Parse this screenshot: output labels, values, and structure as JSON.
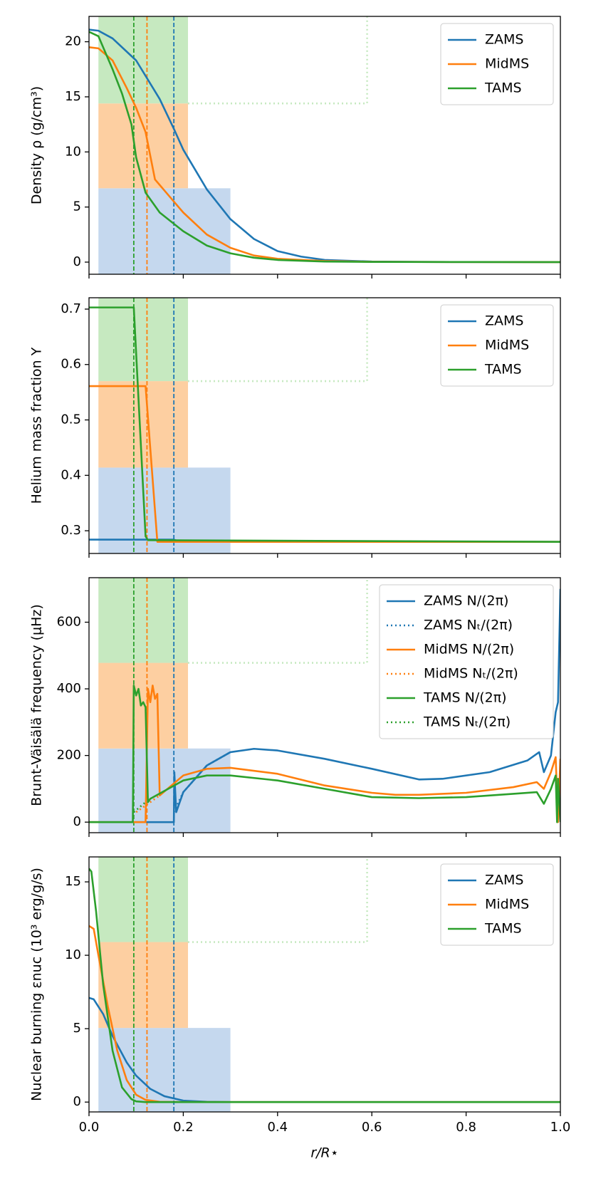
{
  "chart_data": [
    {
      "type": "line",
      "ylabel": "Density ρ (g/cm³)",
      "xlim": [
        0,
        1
      ],
      "ylim": [
        -1.1,
        22.3
      ],
      "yticks": [
        0,
        5,
        10,
        15,
        20
      ],
      "legend": "upper right",
      "regions": [
        {
          "x": [
            0.02,
            0.3
          ],
          "y": [
            -1.1,
            6.7
          ],
          "color": "#c5d8ee"
        },
        {
          "x": [
            0.02,
            0.21
          ],
          "y": [
            6.7,
            14.4
          ],
          "color": "#fdcfa1"
        },
        {
          "x": [
            0.02,
            0.21
          ],
          "y": [
            14.4,
            22.3
          ],
          "color": "#c6e9c0"
        }
      ],
      "step_line": {
        "x": [
          0.21,
          0.59,
          0.59
        ],
        "y": [
          14.4,
          14.4,
          22.3
        ],
        "color": "#c6e9c0"
      },
      "vlines": [
        {
          "x": 0.095,
          "color": "#2ca02c"
        },
        {
          "x": 0.123,
          "color": "#ff7f0e"
        },
        {
          "x": 0.18,
          "color": "#1f77b4"
        }
      ],
      "series": [
        {
          "name": "ZAMS",
          "color": "#1f77b4",
          "linestyle": "solid",
          "x": [
            0,
            0.02,
            0.05,
            0.1,
            0.15,
            0.18,
            0.2,
            0.25,
            0.3,
            0.35,
            0.4,
            0.45,
            0.5,
            0.6,
            0.7,
            0.8,
            1.0
          ],
          "values": [
            21.1,
            21.0,
            20.3,
            18.3,
            14.8,
            12.1,
            10.2,
            6.6,
            3.9,
            2.1,
            1.0,
            0.5,
            0.2,
            0.05,
            0.02,
            0.01,
            0
          ]
        },
        {
          "name": "MidMS",
          "color": "#ff7f0e",
          "linestyle": "solid",
          "x": [
            0,
            0.02,
            0.05,
            0.08,
            0.1,
            0.12,
            0.14,
            0.16,
            0.2,
            0.25,
            0.3,
            0.35,
            0.4,
            0.5,
            0.6,
            0.8,
            1.0
          ],
          "values": [
            19.5,
            19.4,
            18.3,
            15.8,
            14.0,
            11.8,
            7.5,
            6.5,
            4.5,
            2.5,
            1.3,
            0.6,
            0.3,
            0.1,
            0.03,
            0.01,
            0
          ]
        },
        {
          "name": "TAMS",
          "color": "#2ca02c",
          "linestyle": "solid",
          "x": [
            0,
            0.02,
            0.05,
            0.07,
            0.09,
            0.1,
            0.12,
            0.15,
            0.2,
            0.25,
            0.3,
            0.35,
            0.4,
            0.5,
            0.6,
            0.8,
            1.0
          ],
          "values": [
            20.9,
            20.5,
            17.5,
            15.3,
            12.5,
            9.5,
            6.3,
            4.5,
            2.8,
            1.5,
            0.8,
            0.4,
            0.2,
            0.05,
            0.02,
            0.01,
            0
          ]
        }
      ]
    },
    {
      "type": "line",
      "ylabel": "Helium mass fraction Y",
      "xlim": [
        0,
        1
      ],
      "ylim": [
        0.259,
        0.7205
      ],
      "yticks": [
        0.3,
        0.4,
        0.5,
        0.6,
        0.7
      ],
      "legend": "upper right",
      "regions": [
        {
          "x": [
            0.02,
            0.3
          ],
          "y": [
            0.259,
            0.414
          ],
          "color": "#c5d8ee"
        },
        {
          "x": [
            0.02,
            0.21
          ],
          "y": [
            0.414,
            0.57
          ],
          "color": "#fdcfa1"
        },
        {
          "x": [
            0.02,
            0.21
          ],
          "y": [
            0.57,
            0.7205
          ],
          "color": "#c6e9c0"
        }
      ],
      "step_line": {
        "x": [
          0.21,
          0.59,
          0.59
        ],
        "y": [
          0.57,
          0.57,
          0.7205
        ],
        "color": "#c6e9c0"
      },
      "vlines": [
        {
          "x": 0.095,
          "color": "#2ca02c"
        },
        {
          "x": 0.123,
          "color": "#ff7f0e"
        },
        {
          "x": 0.18,
          "color": "#1f77b4"
        }
      ],
      "series": [
        {
          "name": "ZAMS",
          "color": "#1f77b4",
          "linestyle": "solid",
          "x": [
            0,
            0.18,
            0.19,
            0.3,
            1.0
          ],
          "values": [
            0.284,
            0.284,
            0.281,
            0.28,
            0.28
          ]
        },
        {
          "name": "MidMS",
          "color": "#ff7f0e",
          "linestyle": "solid",
          "x": [
            0,
            0.12,
            0.145,
            0.15,
            1.0
          ],
          "values": [
            0.561,
            0.561,
            0.28,
            0.28,
            0.28
          ]
        },
        {
          "name": "TAMS",
          "color": "#2ca02c",
          "linestyle": "solid",
          "x": [
            0,
            0.095,
            0.12,
            0.125,
            1.0
          ],
          "values": [
            0.703,
            0.703,
            0.29,
            0.283,
            0.28
          ]
        }
      ]
    },
    {
      "type": "line",
      "ylabel": "Brunt-Väisälä frequency (μHz)",
      "xlim": [
        0,
        1
      ],
      "ylim": [
        -31.7,
        733.6
      ],
      "yticks": [
        0,
        200,
        400,
        600
      ],
      "legend": "upper right",
      "regions": [
        {
          "x": [
            0.02,
            0.3
          ],
          "y": [
            -31.7,
            221
          ],
          "color": "#c5d8ee"
        },
        {
          "x": [
            0.02,
            0.21
          ],
          "y": [
            221,
            478
          ],
          "color": "#fdcfa1"
        },
        {
          "x": [
            0.02,
            0.21
          ],
          "y": [
            478,
            733.6
          ],
          "color": "#c6e9c0"
        }
      ],
      "step_line": {
        "x": [
          0.21,
          0.59,
          0.59
        ],
        "y": [
          478,
          478,
          733.6
        ],
        "color": "#c6e9c0"
      },
      "vlines": [
        {
          "x": 0.095,
          "color": "#2ca02c"
        },
        {
          "x": 0.123,
          "color": "#ff7f0e"
        },
        {
          "x": 0.18,
          "color": "#1f77b4"
        }
      ],
      "series": [
        {
          "name": "ZAMS N/(2π)",
          "color": "#1f77b4",
          "linestyle": "solid",
          "x": [
            0,
            0.18,
            0.181,
            0.185,
            0.2,
            0.25,
            0.3,
            0.35,
            0.4,
            0.5,
            0.6,
            0.7,
            0.75,
            0.85,
            0.93,
            0.955,
            0.965,
            0.98,
            0.99,
            0.995,
            1.0
          ],
          "values": [
            0,
            0,
            150,
            30,
            90,
            170,
            210,
            220,
            215,
            190,
            160,
            128,
            130,
            150,
            185,
            210,
            150,
            200,
            330,
            360,
            700
          ]
        },
        {
          "name": "ZAMS Nₜ/(2π)",
          "color": "#1f77b4",
          "linestyle": "dotted",
          "x": [
            0.18,
            0.2,
            0.25,
            0.3
          ],
          "values": [
            30,
            90,
            170,
            210
          ]
        },
        {
          "name": "MidMS N/(2π)",
          "color": "#ff7f0e",
          "linestyle": "solid",
          "x": [
            0,
            0.12,
            0.125,
            0.13,
            0.135,
            0.14,
            0.145,
            0.15,
            0.2,
            0.25,
            0.3,
            0.4,
            0.5,
            0.6,
            0.65,
            0.7,
            0.8,
            0.9,
            0.95,
            0.965,
            0.98,
            0.99,
            0.995,
            1.0
          ],
          "values": [
            0,
            0,
            400,
            360,
            410,
            370,
            385,
            80,
            140,
            160,
            163,
            145,
            110,
            88,
            82,
            82,
            88,
            105,
            120,
            100,
            150,
            195,
            0,
            190
          ]
        },
        {
          "name": "MidMS Nₜ/(2π)",
          "color": "#ff7f0e",
          "linestyle": "dotted",
          "x": [
            0.1,
            0.125,
            0.15
          ],
          "values": [
            30,
            55,
            80
          ]
        },
        {
          "name": "TAMS N/(2π)",
          "color": "#2ca02c",
          "linestyle": "solid",
          "x": [
            0,
            0.093,
            0.095,
            0.1,
            0.105,
            0.11,
            0.115,
            0.12,
            0.125,
            0.13,
            0.2,
            0.25,
            0.3,
            0.4,
            0.5,
            0.6,
            0.7,
            0.8,
            0.9,
            0.95,
            0.965,
            0.98,
            0.99,
            0.993,
            0.995,
            1.0
          ],
          "values": [
            0,
            0,
            410,
            380,
            400,
            350,
            360,
            345,
            60,
            70,
            125,
            140,
            140,
            125,
            100,
            75,
            72,
            75,
            85,
            90,
            55,
            100,
            140,
            0,
            130,
            0
          ]
        },
        {
          "name": "TAMS Nₜ/(2π)",
          "color": "#2ca02c",
          "linestyle": "dotted",
          "x": [
            0.095,
            0.12
          ],
          "values": [
            30,
            60
          ]
        }
      ]
    },
    {
      "type": "line",
      "ylabel": "Nuclear burning εnuc (10³ erg/g/s)",
      "xlabel": "r/R⋆",
      "xlim": [
        0,
        1
      ],
      "ylim": [
        -0.67,
        16.7
      ],
      "yticks": [
        0,
        5,
        10,
        15
      ],
      "xticks": [
        {
          "value": 0,
          "label": "0.0"
        },
        0.2,
        0.4,
        0.6,
        0.8,
        {
          "value": 1,
          "label": "1.0"
        }
      ],
      "legend": "upper right",
      "regions": [
        {
          "x": [
            0.02,
            0.3
          ],
          "y": [
            -0.67,
            5.05
          ],
          "color": "#c5d8ee"
        },
        {
          "x": [
            0.02,
            0.21
          ],
          "y": [
            5.05,
            10.9
          ],
          "color": "#fdcfa1"
        },
        {
          "x": [
            0.02,
            0.21
          ],
          "y": [
            10.9,
            16.7
          ],
          "color": "#c6e9c0"
        }
      ],
      "step_line": {
        "x": [
          0.21,
          0.59,
          0.59
        ],
        "y": [
          10.9,
          10.9,
          16.7
        ],
        "color": "#c6e9c0"
      },
      "vlines": [
        {
          "x": 0.095,
          "color": "#2ca02c"
        },
        {
          "x": 0.123,
          "color": "#ff7f0e"
        },
        {
          "x": 0.18,
          "color": "#1f77b4"
        }
      ],
      "series": [
        {
          "name": "ZAMS",
          "color": "#1f77b4",
          "linestyle": "solid",
          "x": [
            0,
            0.01,
            0.03,
            0.05,
            0.08,
            0.1,
            0.13,
            0.16,
            0.2,
            0.25,
            0.3,
            1.0
          ],
          "values": [
            7.1,
            7.0,
            6.0,
            4.5,
            2.7,
            1.8,
            0.9,
            0.4,
            0.1,
            0.02,
            0,
            0
          ]
        },
        {
          "name": "MidMS",
          "color": "#ff7f0e",
          "linestyle": "solid",
          "x": [
            0,
            0.01,
            0.02,
            0.04,
            0.06,
            0.08,
            0.1,
            0.12,
            0.15,
            0.2,
            1.0
          ],
          "values": [
            12.0,
            11.8,
            10.0,
            6.5,
            3.5,
            1.5,
            0.5,
            0.15,
            0.02,
            0,
            0
          ]
        },
        {
          "name": "TAMS",
          "color": "#2ca02c",
          "linestyle": "solid",
          "x": [
            0,
            0.005,
            0.015,
            0.03,
            0.05,
            0.07,
            0.09,
            0.1,
            0.12,
            1.0
          ],
          "values": [
            15.9,
            15.7,
            13,
            8,
            3.5,
            1.0,
            0.2,
            0.05,
            0,
            0
          ]
        }
      ]
    }
  ]
}
